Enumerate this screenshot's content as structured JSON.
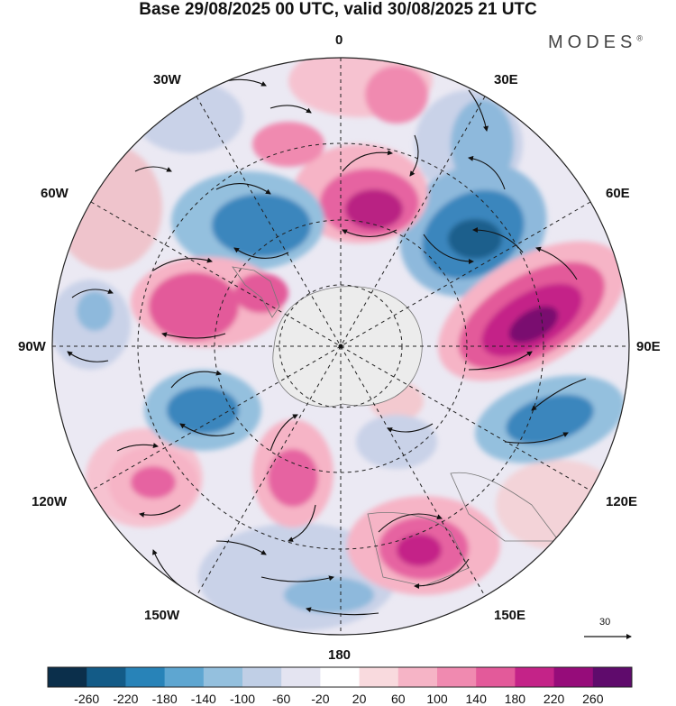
{
  "title": "Base 29/08/2025 00 UTC, valid 30/08/2025 21 UTC",
  "brand": "MODES",
  "brand_mark": "®",
  "lon_labels": {
    "north": "0",
    "east": "90E",
    "south": "180",
    "west": "90W",
    "l30w": "30W",
    "l30e": "30E",
    "l60w": "60W",
    "l60e": "60E",
    "l120w": "120W",
    "l120e": "120E",
    "l150w": "150W",
    "l150e": "150E"
  },
  "reference_vector": "30",
  "colorbar": {
    "colors": [
      "#0b2f4b",
      "#135b87",
      "#2883b8",
      "#5ea6d1",
      "#94c0de",
      "#c0cfe6",
      "#e4e4f1",
      "#ffffff",
      "#f9dade",
      "#f6b4c6",
      "#f08ab0",
      "#e35a9a",
      "#c42388",
      "#960c7a",
      "#5f0b6c"
    ],
    "ticks": [
      "-260",
      "-220",
      "-180",
      "-140",
      "-100",
      "-60",
      "-20",
      "20",
      "60",
      "100",
      "140",
      "180",
      "220",
      "260"
    ]
  },
  "colors": {
    "neg_strong": "#3a86bd",
    "neg_mid": "#8eb9dc",
    "neg_weak": "#c9d2e8",
    "pos_strong": "#b92283",
    "pos_mid": "#e664a1",
    "pos_weak": "#f6c2d0",
    "antarctica": "#ececec"
  }
}
